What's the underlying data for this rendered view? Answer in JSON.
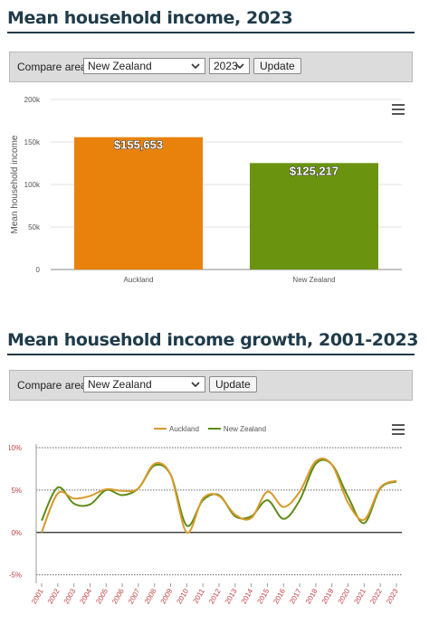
{
  "section1": {
    "title": "Mean household income, 2023",
    "compare_label": "Compare area:",
    "compare_value": "New Zealand",
    "year_value": "2023",
    "update_label": "Update"
  },
  "section2": {
    "title": "Mean household income growth, 2001-2023",
    "compare_label": "Compare area:",
    "compare_value": "New Zealand",
    "update_label": "Update"
  },
  "icons": {
    "menu": "hamburger-menu-icon",
    "dropdown": "chevron-down-icon"
  },
  "chart_data": [
    {
      "type": "bar",
      "categories": [
        "Auckland",
        "New Zealand"
      ],
      "values": [
        155653,
        125217
      ],
      "data_labels": [
        "$155,653",
        "$125,217"
      ],
      "colors": [
        "#e8820c",
        "#6a9410"
      ],
      "ylabel": "Mean household income",
      "xlabel": "",
      "ylim": [
        0,
        200000
      ],
      "yticks": [
        0,
        50000,
        100000,
        150000,
        200000
      ],
      "ytick_labels": [
        "0",
        "50k",
        "100k",
        "150k",
        "200k"
      ],
      "grid": true
    },
    {
      "type": "line",
      "x": [
        "2001",
        "2002",
        "2003",
        "2004",
        "2005",
        "2006",
        "2007",
        "2008",
        "2009",
        "2010",
        "2011",
        "2012",
        "2013",
        "2014",
        "2015",
        "2016",
        "2017",
        "2018",
        "2019",
        "2020",
        "2021",
        "2022",
        "2023"
      ],
      "series": [
        {
          "name": "Auckland",
          "color": "#d89a2c",
          "values": [
            0.0,
            4.6,
            4.0,
            4.3,
            5.1,
            4.9,
            5.2,
            8.1,
            6.8,
            0.0,
            4.0,
            4.3,
            2.1,
            1.7,
            4.8,
            3.0,
            4.8,
            8.4,
            8.0,
            3.5,
            1.5,
            5.3,
            6.1
          ]
        },
        {
          "name": "New Zealand",
          "color": "#5e8c16",
          "values": [
            1.4,
            5.3,
            3.4,
            3.3,
            5.0,
            4.4,
            5.2,
            7.9,
            6.8,
            0.8,
            3.8,
            4.4,
            1.9,
            1.9,
            3.8,
            1.6,
            3.8,
            8.1,
            8.0,
            4.2,
            1.1,
            5.2,
            6.0
          ]
        }
      ],
      "ylim": [
        -6,
        10
      ],
      "yticks": [
        -5,
        0,
        5,
        10
      ],
      "ytick_labels": [
        "-5%",
        "0%",
        "5%",
        "10%"
      ],
      "legend": "top-center",
      "grid": true
    }
  ]
}
